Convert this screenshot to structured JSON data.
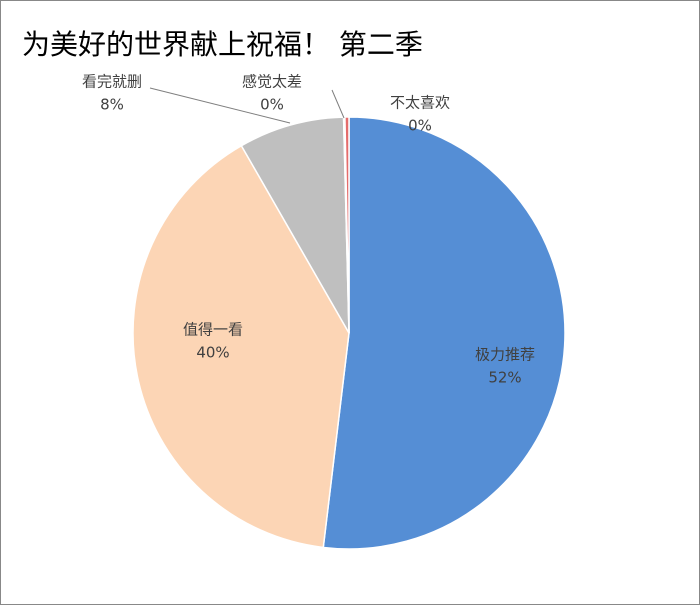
{
  "chart_data": {
    "type": "pie",
    "title": "为美好的世界献上祝福！ 第二季",
    "categories": [
      "极力推荐",
      "值得一看",
      "看完就删",
      "感觉太差",
      "不太喜欢"
    ],
    "values": [
      51.9,
      39.8,
      7.9,
      0.1,
      0.3
    ],
    "value_labels": [
      "52%",
      "40%",
      "8%",
      "0%",
      "0%"
    ],
    "colors": [
      "#558ed5",
      "#fcd5b5",
      "#bfbfbf",
      "#7f7f7f",
      "#e46c6c"
    ]
  }
}
